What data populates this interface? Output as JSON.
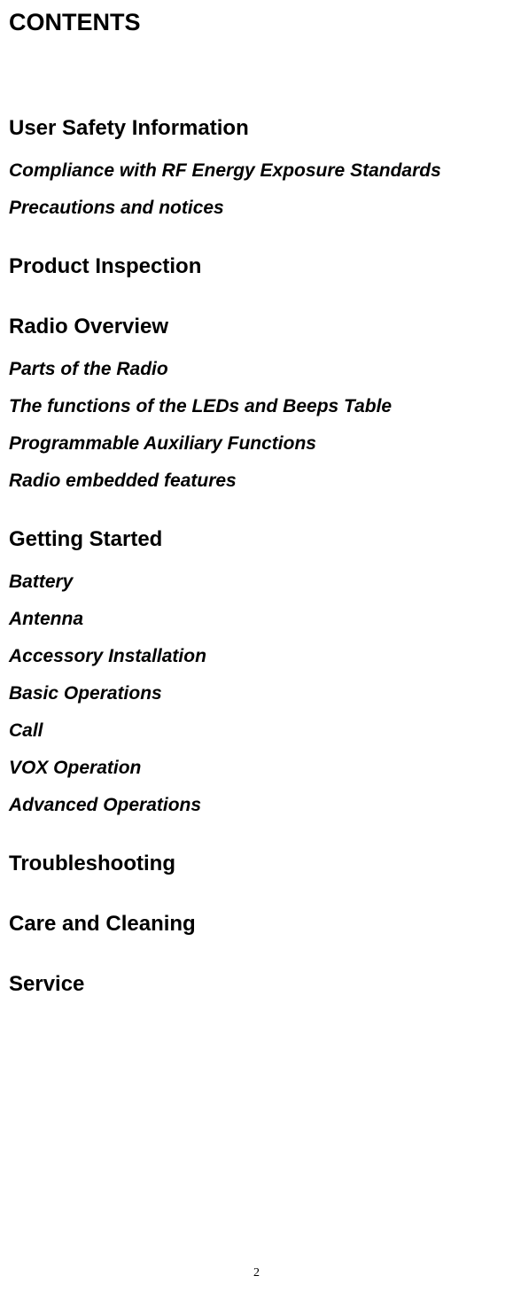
{
  "title": "CONTENTS",
  "sections": [
    {
      "heading": "User Safety Information",
      "items": [
        "Compliance with RF Energy Exposure Standards",
        "Precautions and notices"
      ]
    },
    {
      "heading": "Product Inspection",
      "items": []
    },
    {
      "heading": "Radio Overview",
      "items": [
        "Parts of the Radio",
        "The functions of the LEDs and Beeps Table",
        "Programmable Auxiliary Functions",
        "Radio embedded features"
      ]
    },
    {
      "heading": "Getting Started",
      "items": [
        "Battery",
        "Antenna",
        "Accessory Installation",
        "Basic Operations",
        "Call",
        "VOX Operation",
        "Advanced Operations"
      ]
    },
    {
      "heading": "Troubleshooting",
      "items": []
    },
    {
      "heading": "Care and Cleaning",
      "items": []
    },
    {
      "heading": "Service",
      "items": []
    }
  ],
  "pageNumber": "2",
  "styles": {
    "backgroundColor": "#ffffff",
    "textColor": "#000000",
    "titleFontSize": 27,
    "headingFontSize": 24,
    "subHeadingFontSize": 21,
    "pageNumberFontSize": 14
  }
}
